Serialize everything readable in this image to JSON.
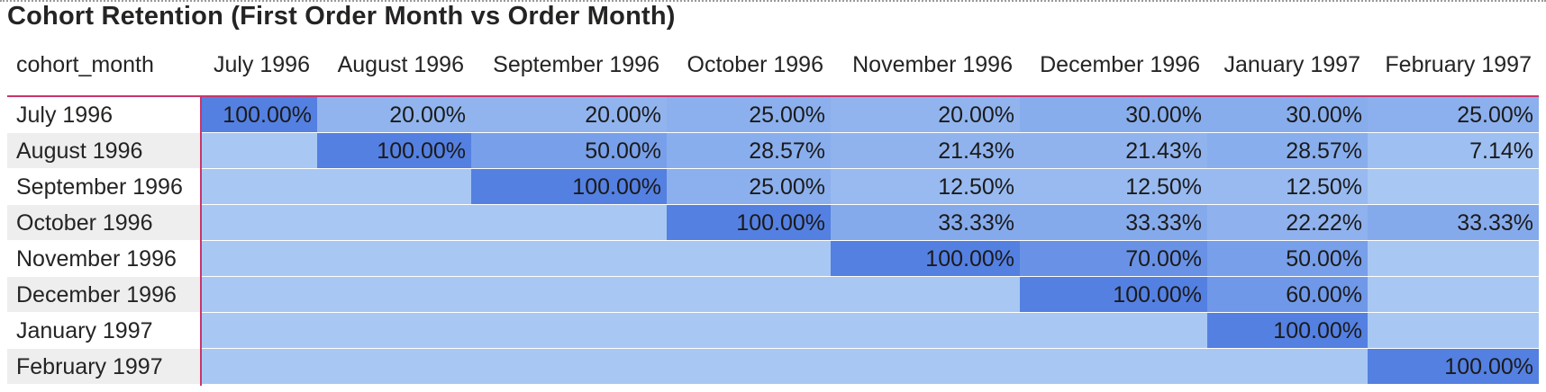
{
  "title": "Cohort Retention (First Order Month vs Order Month)",
  "colors": {
    "row_header_alt": "#eeeeee",
    "header_rule": "#c8366b",
    "scale_low": "#a8c8f3",
    "scale_high": "#5480e2"
  },
  "chart_data": {
    "type": "heatmap",
    "title": "Cohort Retention (First Order Month vs Order Month)",
    "row_header_label": "cohort_month",
    "columns": [
      "July 1996",
      "August 1996",
      "September 1996",
      "October 1996",
      "November 1996",
      "December 1996",
      "January 1997",
      "February 1997"
    ],
    "rows": [
      {
        "label": "July 1996",
        "values": [
          "100.00%",
          "20.00%",
          "20.00%",
          "25.00%",
          "20.00%",
          "30.00%",
          "30.00%",
          "25.00%"
        ]
      },
      {
        "label": "August 1996",
        "values": [
          "",
          "100.00%",
          "50.00%",
          "28.57%",
          "21.43%",
          "21.43%",
          "28.57%",
          "7.14%"
        ]
      },
      {
        "label": "September 1996",
        "values": [
          "",
          "",
          "100.00%",
          "25.00%",
          "12.50%",
          "12.50%",
          "12.50%",
          ""
        ]
      },
      {
        "label": "October 1996",
        "values": [
          "",
          "",
          "",
          "100.00%",
          "33.33%",
          "33.33%",
          "22.22%",
          "33.33%"
        ]
      },
      {
        "label": "November 1996",
        "values": [
          "",
          "",
          "",
          "",
          "100.00%",
          "70.00%",
          "50.00%",
          ""
        ]
      },
      {
        "label": "December 1996",
        "values": [
          "",
          "",
          "",
          "",
          "",
          "100.00%",
          "60.00%",
          ""
        ]
      },
      {
        "label": "January 1997",
        "values": [
          "",
          "",
          "",
          "",
          "",
          "",
          "100.00%",
          ""
        ]
      },
      {
        "label": "February 1997",
        "values": [
          "",
          "",
          "",
          "",
          "",
          "",
          "",
          "100.00%"
        ]
      }
    ]
  }
}
